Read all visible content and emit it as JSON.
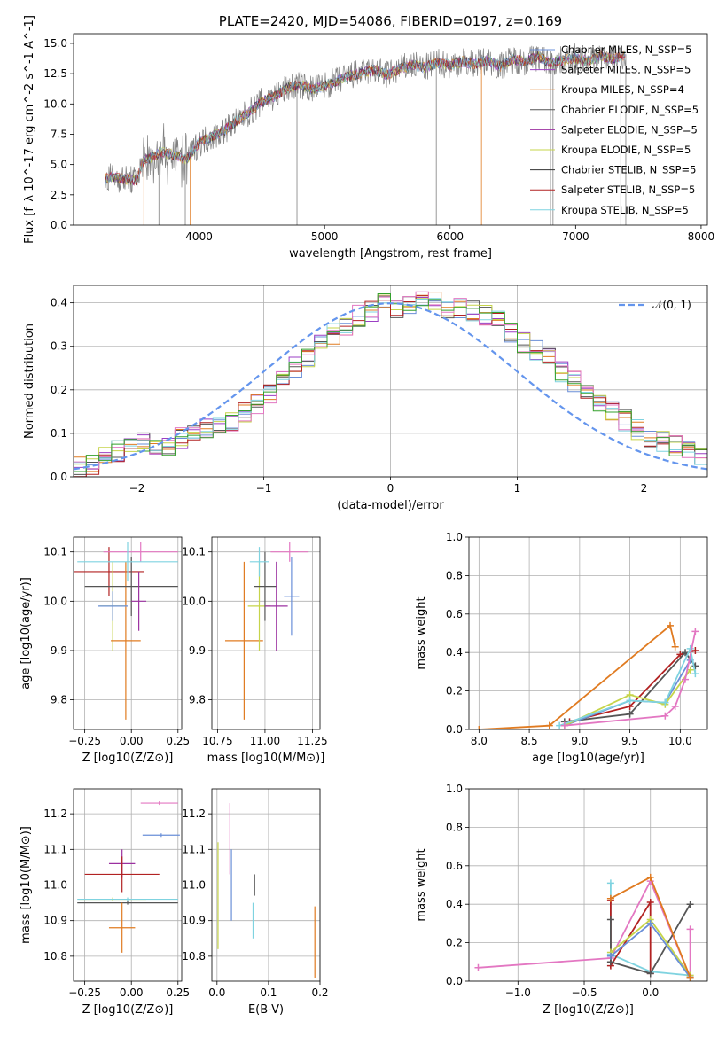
{
  "chart_data": [
    {
      "id": "spectrum",
      "type": "line",
      "title": "PLATE=2420, MJD=54086, FIBERID=0197, z=0.169",
      "xlabel": "wavelength [Angstrom, rest frame]",
      "ylabel": "Flux [f_λ 10^-17 erg cm^-2 s^-1 A^-1]",
      "xlim": [
        3000,
        8050
      ],
      "ylim": [
        0,
        15.8
      ],
      "xticks": [
        "4000",
        "5000",
        "6000",
        "7000",
        "8000"
      ],
      "yticks": [
        "0.0",
        "2.5",
        "5.0",
        "7.5",
        "10.0",
        "12.5",
        "15.0"
      ],
      "grid": false,
      "legend_position": "top-right",
      "observed_series": {
        "color": "#808080",
        "x": [
          3250,
          3300,
          3400,
          3500,
          3550,
          3600,
          3700,
          3800,
          3900,
          4000,
          4100,
          4200,
          4300,
          4400,
          4500,
          4600,
          4700,
          4800,
          4900,
          5000,
          5100,
          5200,
          5300,
          5400,
          5500,
          5600,
          5700,
          5800,
          5900,
          6000,
          6100,
          6200,
          6300,
          6400,
          6500,
          6600,
          6700,
          6800,
          6900,
          7000,
          7100,
          7200,
          7300,
          7400
        ],
        "y": [
          3.8,
          4.0,
          3.8,
          3.7,
          5.2,
          5.5,
          6.0,
          5.8,
          5.4,
          6.8,
          7.3,
          7.8,
          8.6,
          9.3,
          10.2,
          10.6,
          11.3,
          11.6,
          11.2,
          11.5,
          11.9,
          12.3,
          12.6,
          12.8,
          12.4,
          12.9,
          13.2,
          13.0,
          13.4,
          13.2,
          13.5,
          13.3,
          13.6,
          13.1,
          13.7,
          13.5,
          13.9,
          13.4,
          13.6,
          13.8,
          13.5,
          14.0,
          13.7,
          14.1
        ]
      },
      "model_series": [
        {
          "name": "Chabrier MILES, N_SSP=5",
          "color": "#6a8fd8"
        },
        {
          "name": "Salpeter MILES, N_SSP=5",
          "color": "#9b3fc4"
        },
        {
          "name": "Kroupa MILES, N_SSP=4",
          "color": "#e07b21"
        },
        {
          "name": "Chabrier ELODIE, N_SSP=5",
          "color": "#555555"
        },
        {
          "name": "Salpeter ELODIE, N_SSP=5",
          "color": "#9b30a0"
        },
        {
          "name": "Kroupa ELODIE, N_SSP=5",
          "color": "#c6d44a"
        },
        {
          "name": "Chabrier STELIB, N_SSP=5",
          "color": "#333333"
        },
        {
          "name": "Salpeter STELIB, N_SSP=5",
          "color": "#b22222"
        },
        {
          "name": "Kroupa STELIB, N_SSP=5",
          "color": "#7fd3e0"
        }
      ]
    },
    {
      "id": "residuals",
      "type": "bar",
      "xlabel": "(data-model)/error",
      "ylabel": "Normed distribution",
      "xlim": [
        -2.5,
        2.5
      ],
      "ylim": [
        0,
        0.44
      ],
      "xticks": [
        "−2",
        "−1",
        "0",
        "1",
        "2"
      ],
      "yticks": [
        "0.0",
        "0.1",
        "0.2",
        "0.3",
        "0.4"
      ],
      "grid": true,
      "legend_position": "top-right",
      "reference_curve": {
        "name": "𝒩(0, 1)",
        "color": "#6495ed",
        "style": "dashed"
      },
      "bin_edges_start": -2.5,
      "bin_width": 0.1,
      "hist_values": [
        0.025,
        0.03,
        0.05,
        0.06,
        0.065,
        0.08,
        0.06,
        0.07,
        0.09,
        0.1,
        0.11,
        0.12,
        0.13,
        0.15,
        0.17,
        0.19,
        0.22,
        0.25,
        0.27,
        0.31,
        0.33,
        0.35,
        0.37,
        0.38,
        0.4,
        0.39,
        0.4,
        0.41,
        0.4,
        0.39,
        0.39,
        0.38,
        0.37,
        0.36,
        0.33,
        0.31,
        0.29,
        0.27,
        0.24,
        0.22,
        0.2,
        0.17,
        0.15,
        0.13,
        0.11,
        0.09,
        0.08,
        0.07,
        0.055,
        0.05
      ]
    },
    {
      "id": "age-vs-Z",
      "type": "scatter",
      "xlabel": "Z [log10(Z/Z⊙)]",
      "ylabel": "age [log10(age/yr)]",
      "xlim": [
        -0.31,
        0.27
      ],
      "ylim": [
        9.74,
        10.13
      ],
      "xticks": [
        "−0.25",
        "0.00",
        "0.25"
      ],
      "yticks": [
        "9.8",
        "9.9",
        "10.0",
        "10.1"
      ],
      "grid": true,
      "points": [
        {
          "x": -0.12,
          "y": 10.06,
          "xerr": 0.19,
          "yerr": 0.05,
          "color": "#b22222"
        },
        {
          "x": -0.1,
          "y": 9.99,
          "xerr": 0.07,
          "yerr": 0.09,
          "color": "#c6d44a"
        },
        {
          "x": -0.03,
          "y": 9.92,
          "xerr": 0.08,
          "yerr": 0.16,
          "color": "#e07b21"
        },
        {
          "x": 0.0,
          "y": 10.03,
          "xerr": 0.25,
          "yerr": 0.06,
          "color": "#555555"
        },
        {
          "x": 0.05,
          "y": 10.1,
          "xerr": 0.2,
          "yerr": 0.02,
          "color": "#e377c2"
        },
        {
          "x": 0.04,
          "y": 10.0,
          "xerr": 0.04,
          "yerr": 0.06,
          "color": "#9b30a0"
        },
        {
          "x": -0.02,
          "y": 10.08,
          "xerr": 0.27,
          "yerr": 0.04,
          "color": "#7fd3e0"
        },
        {
          "x": -0.1,
          "y": 9.99,
          "xerr": 0.08,
          "yerr": 0.03,
          "color": "#6a8fd8"
        }
      ]
    },
    {
      "id": "age-vs-mass",
      "type": "scatter",
      "xlabel": "mass [log10(M/M⊙)]",
      "ylabel": "",
      "xlim": [
        10.72,
        11.29
      ],
      "ylim": [
        9.74,
        10.13
      ],
      "xticks": [
        "10.75",
        "11.00",
        "11.25"
      ],
      "yticks": [
        "9.8",
        "9.9",
        "10.0",
        "10.1"
      ],
      "grid": true,
      "points": [
        {
          "x": 10.89,
          "y": 9.92,
          "xerr": 0.1,
          "yerr": 0.16,
          "color": "#e07b21"
        },
        {
          "x": 10.97,
          "y": 9.99,
          "xerr": 0.06,
          "yerr": 0.09,
          "color": "#c6d44a"
        },
        {
          "x": 11.0,
          "y": 10.03,
          "xerr": 0.06,
          "yerr": 0.07,
          "color": "#555555"
        },
        {
          "x": 11.06,
          "y": 9.99,
          "xerr": 0.06,
          "yerr": 0.09,
          "color": "#9b30a0"
        },
        {
          "x": 11.14,
          "y": 10.01,
          "xerr": 0.04,
          "yerr": 0.08,
          "color": "#6a8fd8"
        },
        {
          "x": 11.13,
          "y": 10.1,
          "xerr": 0.1,
          "yerr": 0.02,
          "color": "#e377c2"
        },
        {
          "x": 10.97,
          "y": 10.08,
          "xerr": 0.05,
          "yerr": 0.03,
          "color": "#7fd3e0"
        }
      ]
    },
    {
      "id": "massweight-vs-age",
      "type": "line",
      "xlabel": "age [log10(age/yr)]",
      "ylabel": "mass weight",
      "xlim": [
        7.9,
        10.27
      ],
      "ylim": [
        0,
        1.0
      ],
      "xticks": [
        "8.0",
        "8.5",
        "9.0",
        "9.5",
        "10.0"
      ],
      "yticks": [
        "0.0",
        "0.2",
        "0.4",
        "0.6",
        "0.8",
        "1.0"
      ],
      "grid": true,
      "series": [
        {
          "color": "#e07b21",
          "x": [
            8.0,
            8.7,
            9.9,
            9.95
          ],
          "y": [
            0.0,
            0.02,
            0.54,
            0.43
          ]
        },
        {
          "color": "#b22222",
          "x": [
            8.9,
            9.5,
            10.0,
            10.15
          ],
          "y": [
            0.04,
            0.12,
            0.39,
            0.41
          ]
        },
        {
          "color": "#555555",
          "x": [
            8.85,
            9.5,
            10.05,
            10.15
          ],
          "y": [
            0.04,
            0.08,
            0.4,
            0.33
          ]
        },
        {
          "color": "#6a8fd8",
          "x": [
            8.85,
            9.5,
            9.85,
            10.1
          ],
          "y": [
            0.02,
            0.15,
            0.14,
            0.36
          ]
        },
        {
          "color": "#c6d44a",
          "x": [
            8.85,
            9.5,
            9.85,
            10.1
          ],
          "y": [
            0.02,
            0.18,
            0.13,
            0.31
          ]
        },
        {
          "color": "#7fd3e0",
          "x": [
            8.8,
            9.5,
            9.85,
            10.1,
            10.15
          ],
          "y": [
            0.02,
            0.15,
            0.14,
            0.42,
            0.29
          ]
        },
        {
          "color": "#e377c2",
          "x": [
            8.85,
            9.85,
            9.95,
            10.05,
            10.15
          ],
          "y": [
            0.02,
            0.07,
            0.12,
            0.26,
            0.51
          ]
        }
      ]
    },
    {
      "id": "mass-vs-Z",
      "type": "scatter",
      "xlabel": "Z [log10(Z/Z⊙)]",
      "ylabel": "mass [log10(M/M⊙)]",
      "xlim": [
        -0.31,
        0.27
      ],
      "ylim": [
        10.73,
        11.27
      ],
      "xticks": [
        "−0.25",
        "0.00",
        "0.25"
      ],
      "yticks": [
        "10.8",
        "10.9",
        "11.0",
        "11.1",
        "11.2"
      ],
      "grid": true,
      "points": [
        {
          "x": 0.15,
          "y": 11.23,
          "xerr": 0.1,
          "yerr": 0.005,
          "color": "#e377c2"
        },
        {
          "x": 0.16,
          "y": 11.14,
          "xerr": 0.1,
          "yerr": 0.005,
          "color": "#6a8fd8"
        },
        {
          "x": -0.05,
          "y": 11.06,
          "xerr": 0.07,
          "yerr": 0.04,
          "color": "#9b30a0"
        },
        {
          "x": -0.05,
          "y": 11.03,
          "xerr": 0.2,
          "yerr": 0.05,
          "color": "#b22222"
        },
        {
          "x": -0.1,
          "y": 10.96,
          "xerr": 0.18,
          "yerr": 0.005,
          "color": "#c6d44a"
        },
        {
          "x": -0.02,
          "y": 10.95,
          "xerr": 0.27,
          "yerr": 0.005,
          "color": "#555555"
        },
        {
          "x": -0.02,
          "y": 10.96,
          "xerr": 0.27,
          "yerr": 0.005,
          "color": "#7fd3e0"
        },
        {
          "x": -0.05,
          "y": 10.88,
          "xerr": 0.07,
          "yerr": 0.07,
          "color": "#e07b21"
        }
      ]
    },
    {
      "id": "mass-vs-ebv",
      "type": "scatter",
      "xlabel": "E(B-V)",
      "ylabel": "",
      "xlim": [
        -0.01,
        0.2
      ],
      "ylim": [
        10.73,
        11.27
      ],
      "xticks": [
        "0.0",
        "0.1",
        "0.2"
      ],
      "yticks": [
        "10.8",
        "10.9",
        "11.0",
        "11.1",
        "11.2"
      ],
      "grid": true,
      "points": [
        {
          "x": 0.002,
          "y": 10.97,
          "xerr": 0.0,
          "yerr": 0.15,
          "color": "#c6d44a"
        },
        {
          "x": 0.025,
          "y": 11.13,
          "xerr": 0.0,
          "yerr": 0.1,
          "color": "#e377c2"
        },
        {
          "x": 0.028,
          "y": 11.0,
          "xerr": 0.0,
          "yerr": 0.1,
          "color": "#6a8fd8"
        },
        {
          "x": 0.07,
          "y": 10.9,
          "xerr": 0.0,
          "yerr": 0.05,
          "color": "#7fd3e0"
        },
        {
          "x": 0.073,
          "y": 11.0,
          "xerr": 0.0,
          "yerr": 0.03,
          "color": "#555555"
        },
        {
          "x": 0.19,
          "y": 10.84,
          "xerr": 0.0,
          "yerr": 0.1,
          "color": "#e07b21"
        }
      ]
    },
    {
      "id": "massweight-vs-Z",
      "type": "line",
      "xlabel": "Z [log10(Z/Z⊙)]",
      "ylabel": "mass weight",
      "xlim": [
        -1.37,
        0.43
      ],
      "ylim": [
        0,
        1.0
      ],
      "xticks": [
        "−1.0",
        "−0.5",
        "0.0"
      ],
      "yticks": [
        "0.0",
        "0.2",
        "0.4",
        "0.6",
        "0.8",
        "1.0"
      ],
      "grid": true,
      "series": [
        {
          "color": "#e377c2",
          "x": [
            -1.3,
            -0.3,
            0.0,
            0.3,
            0.3
          ],
          "y": [
            0.07,
            0.12,
            0.52,
            0.02,
            0.27
          ]
        },
        {
          "color": "#7fd3e0",
          "x": [
            -0.3,
            -0.3,
            0.0,
            0.3
          ],
          "y": [
            0.51,
            0.14,
            0.05,
            0.03
          ]
        },
        {
          "color": "#b22222",
          "x": [
            -0.3,
            -0.3,
            0.0,
            0.0
          ],
          "y": [
            0.42,
            0.08,
            0.41,
            0.04
          ]
        },
        {
          "color": "#555555",
          "x": [
            -0.3,
            -0.3,
            0.0,
            0.3
          ],
          "y": [
            0.32,
            0.1,
            0.04,
            0.4
          ]
        },
        {
          "color": "#c6d44a",
          "x": [
            -0.3,
            0.0,
            0.3
          ],
          "y": [
            0.15,
            0.32,
            0.03
          ]
        },
        {
          "color": "#6a8fd8",
          "x": [
            -0.3,
            0.0,
            0.3
          ],
          "y": [
            0.13,
            0.3,
            0.02
          ]
        },
        {
          "color": "#e07b21",
          "x": [
            -0.3,
            0.0,
            0.3
          ],
          "y": [
            0.43,
            0.54,
            0.02
          ]
        }
      ]
    }
  ]
}
